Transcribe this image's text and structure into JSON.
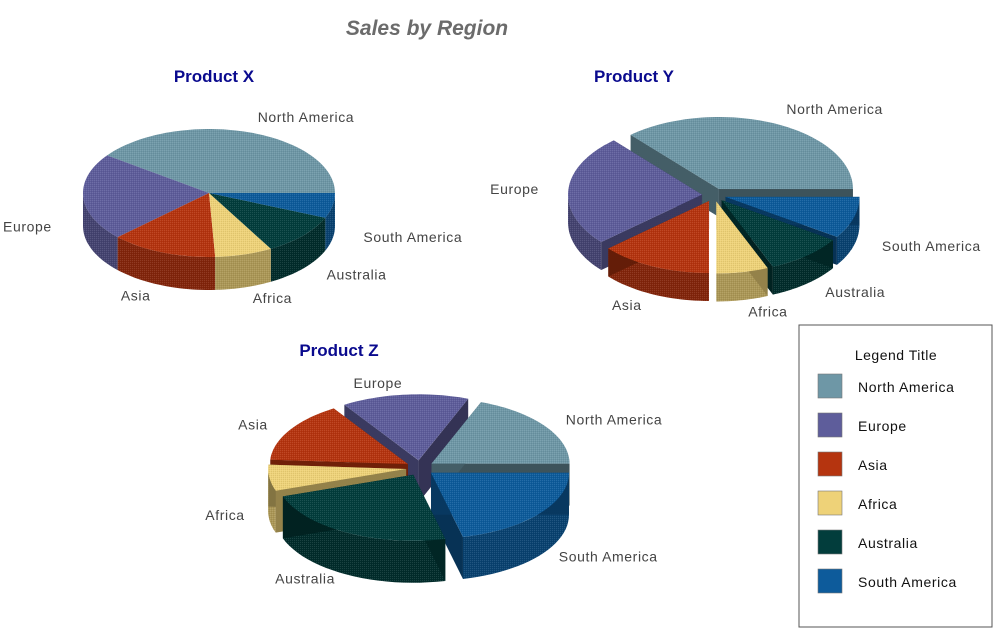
{
  "chart_data": {
    "type": "pie",
    "title": "Sales by Region",
    "categories": [
      "North America",
      "Europe",
      "Asia",
      "Africa",
      "Australia",
      "South America"
    ],
    "colors": [
      "#6e97a6",
      "#5e5d9b",
      "#b5340f",
      "#eed278",
      "#023d3c",
      "#0d5b9b"
    ],
    "charts": [
      {
        "name": "Product X",
        "values": [
          38,
          21,
          13,
          7,
          10,
          6
        ],
        "exploded": []
      },
      {
        "name": "Product Y",
        "values": [
          35,
          24,
          13,
          6,
          9,
          9
        ],
        "exploded": [
          "North America",
          "Europe",
          "Asia",
          "Africa",
          "Australia",
          "South America"
        ]
      },
      {
        "name": "Product Z",
        "values": [
          18,
          14,
          14,
          6,
          22,
          20
        ],
        "exploded": [
          "North America",
          "Europe",
          "Asia",
          "Africa",
          "Australia",
          "South America"
        ]
      }
    ],
    "legend": {
      "title": "Legend Title",
      "position": "bottom-right",
      "items": [
        "North America",
        "Europe",
        "Asia",
        "Africa",
        "Australia",
        "South America"
      ]
    },
    "style": "3d-exploded-pie",
    "grid": false
  }
}
